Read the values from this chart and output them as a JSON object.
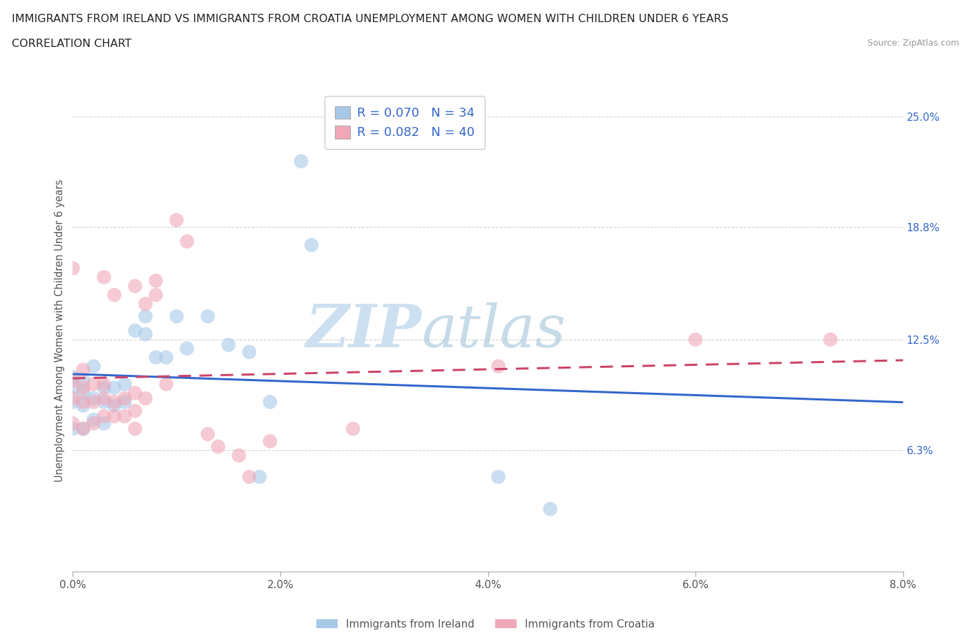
{
  "title_line1": "IMMIGRANTS FROM IRELAND VS IMMIGRANTS FROM CROATIA UNEMPLOYMENT AMONG WOMEN WITH CHILDREN UNDER 6 YEARS",
  "title_line2": "CORRELATION CHART",
  "source": "Source: ZipAtlas.com",
  "ylabel": "Unemployment Among Women with Children Under 6 years",
  "xlim": [
    0.0,
    0.08
  ],
  "ylim": [
    -0.005,
    0.265
  ],
  "xticks": [
    0.0,
    0.02,
    0.04,
    0.06,
    0.08
  ],
  "xticklabels": [
    "0.0%",
    "2.0%",
    "4.0%",
    "6.0%",
    "8.0%"
  ],
  "yticks_right": [
    0.063,
    0.125,
    0.188,
    0.25
  ],
  "yticklabels_right": [
    "6.3%",
    "12.5%",
    "18.8%",
    "25.0%"
  ],
  "ireland_color": "#a8c8e8",
  "croatia_color": "#f0a8b8",
  "ireland_R": 0.07,
  "ireland_N": 34,
  "croatia_R": 0.082,
  "croatia_N": 40,
  "ireland_line_color": "#3366cc",
  "croatia_line_color": "#cc4466",
  "background_color": "#ffffff",
  "grid_color": "#d0d0d0",
  "legend_label_ireland": "Immigrants from Ireland",
  "legend_label_croatia": "Immigrants from Croatia",
  "watermark_1": "ZIP",
  "watermark_2": "atlas",
  "ireland_x": [
    0.0,
    0.0,
    0.0,
    0.0,
    0.001,
    0.001,
    0.001,
    0.001,
    0.002,
    0.002,
    0.002,
    0.003,
    0.003,
    0.003,
    0.004,
    0.004,
    0.005,
    0.005,
    0.006,
    0.007,
    0.007,
    0.008,
    0.009,
    0.01,
    0.011,
    0.013,
    0.015,
    0.017,
    0.018,
    0.019,
    0.022,
    0.023,
    0.041,
    0.046
  ],
  "ireland_y": [
    0.075,
    0.09,
    0.098,
    0.104,
    0.075,
    0.088,
    0.095,
    0.102,
    0.08,
    0.092,
    0.11,
    0.078,
    0.09,
    0.098,
    0.088,
    0.098,
    0.09,
    0.1,
    0.13,
    0.128,
    0.138,
    0.115,
    0.115,
    0.138,
    0.12,
    0.138,
    0.122,
    0.118,
    0.048,
    0.09,
    0.225,
    0.178,
    0.048,
    0.03
  ],
  "croatia_x": [
    0.0,
    0.0,
    0.0,
    0.0,
    0.001,
    0.001,
    0.001,
    0.001,
    0.002,
    0.002,
    0.002,
    0.003,
    0.003,
    0.003,
    0.003,
    0.004,
    0.004,
    0.004,
    0.005,
    0.005,
    0.006,
    0.006,
    0.006,
    0.006,
    0.007,
    0.007,
    0.008,
    0.008,
    0.009,
    0.01,
    0.011,
    0.013,
    0.014,
    0.016,
    0.017,
    0.019,
    0.027,
    0.041,
    0.06,
    0.073
  ],
  "croatia_y": [
    0.078,
    0.092,
    0.102,
    0.165,
    0.075,
    0.09,
    0.098,
    0.108,
    0.078,
    0.09,
    0.1,
    0.082,
    0.092,
    0.1,
    0.16,
    0.082,
    0.09,
    0.15,
    0.082,
    0.092,
    0.075,
    0.085,
    0.095,
    0.155,
    0.092,
    0.145,
    0.15,
    0.158,
    0.1,
    0.192,
    0.18,
    0.072,
    0.065,
    0.06,
    0.048,
    0.068,
    0.075,
    0.11,
    0.125,
    0.125
  ]
}
